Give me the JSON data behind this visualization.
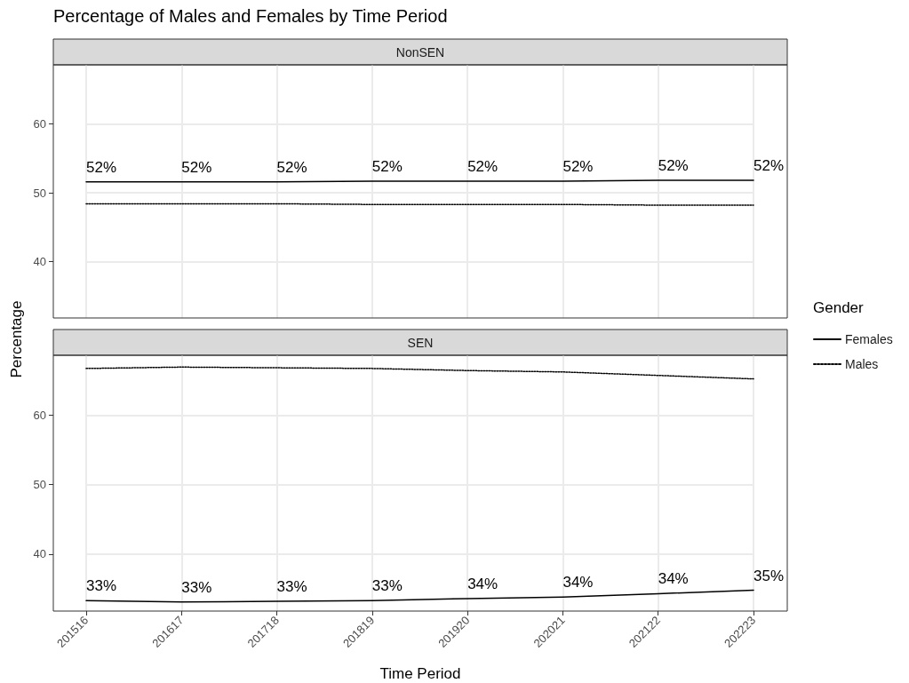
{
  "chart_data": [
    {
      "type": "line",
      "title": "Percentage of Males and Females by Time Period",
      "subtitle": "NonSEN",
      "legend_title": "Gender",
      "categories": [
        "201516",
        "201617",
        "201718",
        "201819",
        "201920",
        "202021",
        "202122",
        "202223"
      ],
      "series": [
        {
          "name": "Females",
          "color": "#000000",
          "line_style": "solid",
          "values": [
            51.6,
            51.6,
            51.6,
            51.7,
            51.7,
            51.7,
            51.8,
            51.8
          ],
          "value_labels": [
            "52%",
            "52%",
            "52%",
            "52%",
            "52%",
            "52%",
            "52%",
            "52%"
          ]
        },
        {
          "name": "Males",
          "color": "#000000",
          "line_style": "dotted",
          "values": [
            48.4,
            48.4,
            48.4,
            48.3,
            48.3,
            48.3,
            48.2,
            48.2
          ]
        }
      ],
      "ylim": [
        31.8,
        68.6
      ],
      "yticks": [
        40,
        50,
        60
      ],
      "grid": true,
      "marker": "none",
      "tick_labels": "y",
      "legend": "right"
    },
    {
      "type": "line",
      "title": "SEN",
      "xlabel": "Time Period",
      "ylabel": "Percentage",
      "categories": [
        "201516",
        "201617",
        "201718",
        "201819",
        "201920",
        "202021",
        "202122",
        "202223"
      ],
      "series": [
        {
          "color": "#000000",
          "line_style": "solid",
          "values": [
            33.3,
            33.1,
            33.2,
            33.3,
            33.6,
            33.8,
            34.3,
            34.8
          ],
          "value_labels": [
            "33%",
            "33%",
            "33%",
            "33%",
            "34%",
            "34%",
            "34%",
            "35%"
          ]
        },
        {
          "color": "#000000",
          "line_style": "dotted",
          "values": [
            66.7,
            66.9,
            66.8,
            66.7,
            66.4,
            66.2,
            65.7,
            65.2
          ]
        }
      ],
      "ylim": [
        31.8,
        68.6
      ],
      "yticks": [
        40,
        50,
        60
      ],
      "grid": true,
      "marker": "none"
    }
  ]
}
